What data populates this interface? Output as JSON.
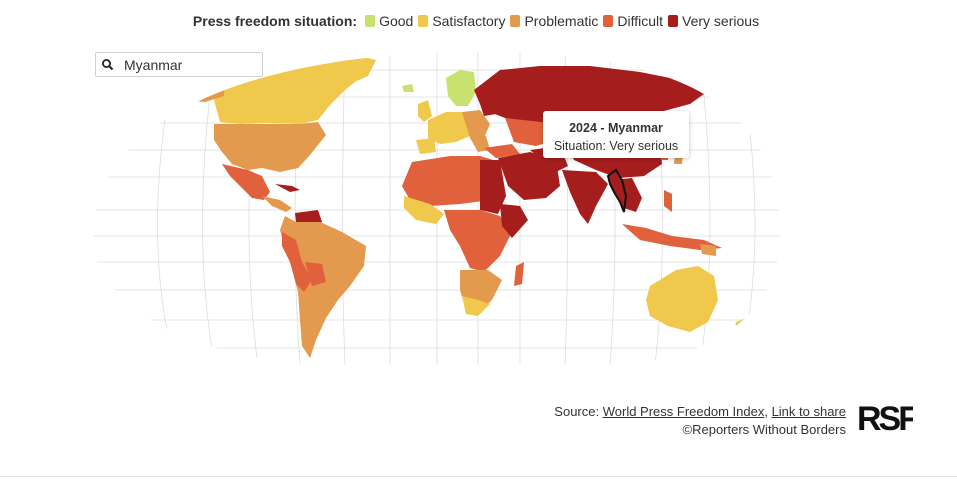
{
  "legend": {
    "title": "Press freedom situation:",
    "items": [
      {
        "label": "Good",
        "color": "#c9e16f"
      },
      {
        "label": "Satisfactory",
        "color": "#f0c84b"
      },
      {
        "label": "Problematic",
        "color": "#e39a4e"
      },
      {
        "label": "Difficult",
        "color": "#e0613c"
      },
      {
        "label": "Very serious",
        "color": "#a61d1d"
      }
    ]
  },
  "search": {
    "value": "Myanmar",
    "icon": "search-icon"
  },
  "tooltip": {
    "title": "2024 - Myanmar",
    "situation": "Situation: Very serious"
  },
  "footer": {
    "source_prefix": "Source: ",
    "source_link": "World Press Freedom Index",
    "separator": ", ",
    "share_link": "Link to share",
    "copyright": "©Reporters Without Borders"
  },
  "logo": {
    "text": "RSF"
  }
}
